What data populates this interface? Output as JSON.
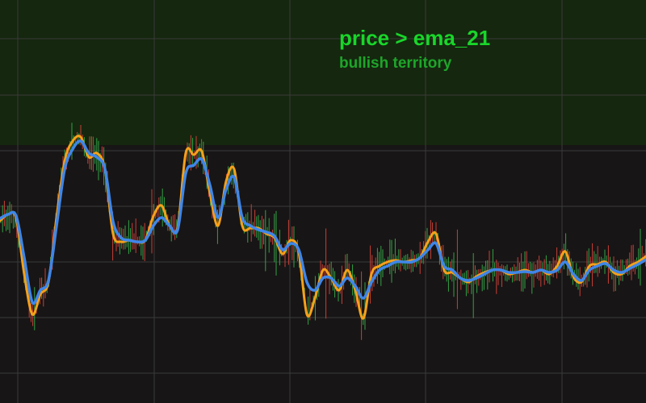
{
  "overlay": {
    "title": "price > ema_21",
    "subtitle": "bullish territory"
  },
  "colors": {
    "background": "#181516",
    "bullish_zone": "#15270f",
    "grid": "#3a3a3a",
    "title": "#19d62a",
    "subtitle": "#1ea52a",
    "candle_up": "#35b14a",
    "candle_down": "#d9453b",
    "price_line": "#f5a11a",
    "ema_line": "#3f86e8"
  },
  "chart_data": {
    "type": "line",
    "title": "",
    "xlabel": "",
    "ylabel": "",
    "ylim": [
      0,
      100
    ],
    "grid": true,
    "zone_threshold": 64,
    "x": [
      0,
      10,
      20,
      30,
      40,
      50,
      60,
      70,
      80,
      90,
      100,
      110,
      120,
      130,
      140,
      150,
      160,
      170,
      180,
      190,
      200,
      210,
      220,
      230,
      240,
      250,
      260,
      270,
      280,
      290,
      300,
      310,
      320,
      330,
      340,
      350,
      360,
      370,
      380,
      390,
      400,
      410,
      420,
      430,
      440,
      450,
      460,
      470,
      480,
      490,
      500,
      510,
      520,
      530,
      540,
      550,
      560,
      570,
      580,
      590,
      600,
      610,
      620,
      630,
      640,
      650,
      660,
      670,
      680,
      690,
      700,
      710,
      720,
      730,
      740,
      750,
      760,
      770,
      780,
      790,
      800
    ],
    "series": [
      {
        "role": "price",
        "values": [
          45.2,
          46.8,
          45.8,
          32.0,
          22.0,
          27.0,
          30.0,
          46.0,
          60.0,
          65.0,
          66.0,
          61.0,
          62.0,
          58.0,
          42.0,
          40.0,
          40.4,
          40.0,
          40.4,
          46.4,
          49.0,
          44.0,
          43.6,
          62.0,
          61.6,
          62.4,
          52.0,
          44.0,
          55.0,
          58.0,
          44.0,
          43.4,
          43.4,
          42.0,
          41.0,
          37.0,
          40.4,
          37.4,
          22.0,
          26.0,
          33.0,
          31.0,
          28.0,
          33.0,
          28.0,
          21.0,
          32.0,
          34.0,
          35.0,
          35.4,
          35.0,
          35.4,
          36.0,
          40.0,
          42.0,
          33.0,
          32.4,
          31.0,
          30.0,
          31.4,
          32.4,
          33.0,
          33.0,
          32.0,
          32.4,
          33.0,
          32.4,
          33.0,
          32.0,
          34.0,
          37.6,
          31.4,
          30.0,
          34.0,
          34.4,
          35.0,
          32.4,
          32.0,
          34.0,
          35.0,
          36.4
        ]
      },
      {
        "role": "ema_21",
        "values": [
          45.8,
          46.8,
          46.4,
          36.0,
          25.0,
          28.0,
          30.4,
          44.0,
          58.0,
          63.0,
          65.0,
          62.0,
          61.0,
          58.0,
          45.0,
          41.0,
          40.4,
          40.0,
          40.4,
          44.0,
          46.0,
          44.0,
          43.0,
          57.0,
          59.0,
          60.4,
          54.0,
          46.0,
          53.0,
          56.0,
          46.0,
          44.0,
          43.0,
          42.4,
          41.4,
          38.0,
          39.6,
          38.0,
          30.0,
          28.0,
          31.0,
          31.0,
          29.0,
          31.0,
          29.0,
          26.0,
          30.0,
          33.0,
          34.0,
          35.0,
          35.0,
          35.0,
          36.0,
          38.0,
          39.6,
          34.0,
          33.0,
          31.0,
          30.4,
          31.0,
          32.0,
          33.0,
          33.0,
          32.4,
          32.4,
          32.6,
          32.4,
          33.0,
          32.4,
          33.0,
          35.0,
          32.0,
          30.4,
          33.0,
          34.0,
          34.6,
          33.0,
          32.4,
          33.4,
          34.4,
          35.6
        ]
      }
    ]
  }
}
